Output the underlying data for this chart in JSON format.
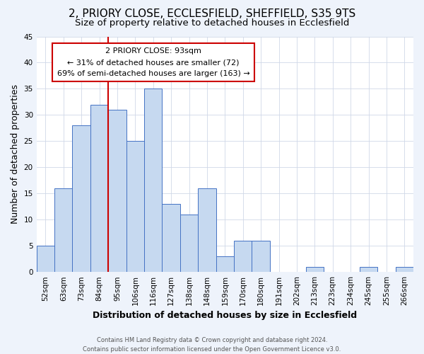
{
  "title": "2, PRIORY CLOSE, ECCLESFIELD, SHEFFIELD, S35 9TS",
  "subtitle": "Size of property relative to detached houses in Ecclesfield",
  "xlabel": "Distribution of detached houses by size in Ecclesfield",
  "ylabel": "Number of detached properties",
  "footer_line1": "Contains HM Land Registry data © Crown copyright and database right 2024.",
  "footer_line2": "Contains public sector information licensed under the Open Government Licence v3.0.",
  "bin_labels": [
    "52sqm",
    "63sqm",
    "73sqm",
    "84sqm",
    "95sqm",
    "106sqm",
    "116sqm",
    "127sqm",
    "138sqm",
    "148sqm",
    "159sqm",
    "170sqm",
    "180sqm",
    "191sqm",
    "202sqm",
    "213sqm",
    "223sqm",
    "234sqm",
    "245sqm",
    "255sqm",
    "266sqm"
  ],
  "bar_heights": [
    5,
    16,
    28,
    32,
    31,
    25,
    35,
    13,
    11,
    16,
    3,
    6,
    6,
    0,
    0,
    1,
    0,
    0,
    1,
    0,
    1
  ],
  "bar_color": "#c6d9f0",
  "bar_edge_color": "#4472c4",
  "highlight_line_color": "#cc0000",
  "highlight_after_label": "84sqm",
  "annotation_title": "2 PRIORY CLOSE: 93sqm",
  "annotation_line1": "← 31% of detached houses are smaller (72)",
  "annotation_line2": "69% of semi-detached houses are larger (163) →",
  "annotation_box_edge": "#cc0000",
  "ylim": [
    0,
    45
  ],
  "yticks": [
    0,
    5,
    10,
    15,
    20,
    25,
    30,
    35,
    40,
    45
  ],
  "title_fontsize": 11,
  "subtitle_fontsize": 9.5,
  "axis_label_fontsize": 9,
  "tick_fontsize": 7.5,
  "annotation_fontsize": 8,
  "footer_fontsize": 6,
  "background_color": "#eef3fb",
  "plot_background_color": "#ffffff",
  "grid_color": "#d0d8e8"
}
